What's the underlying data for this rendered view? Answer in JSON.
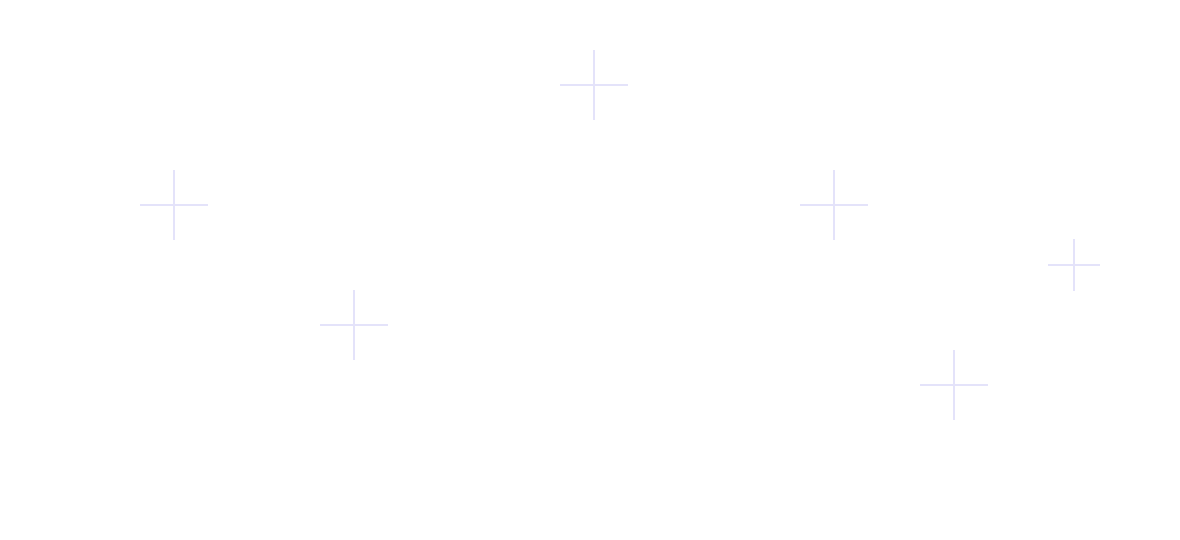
{
  "background_color": "#ffffff",
  "decoration": {
    "icon": "plus-sparkle-icon",
    "color": "#e4e3fa",
    "count": 6
  }
}
